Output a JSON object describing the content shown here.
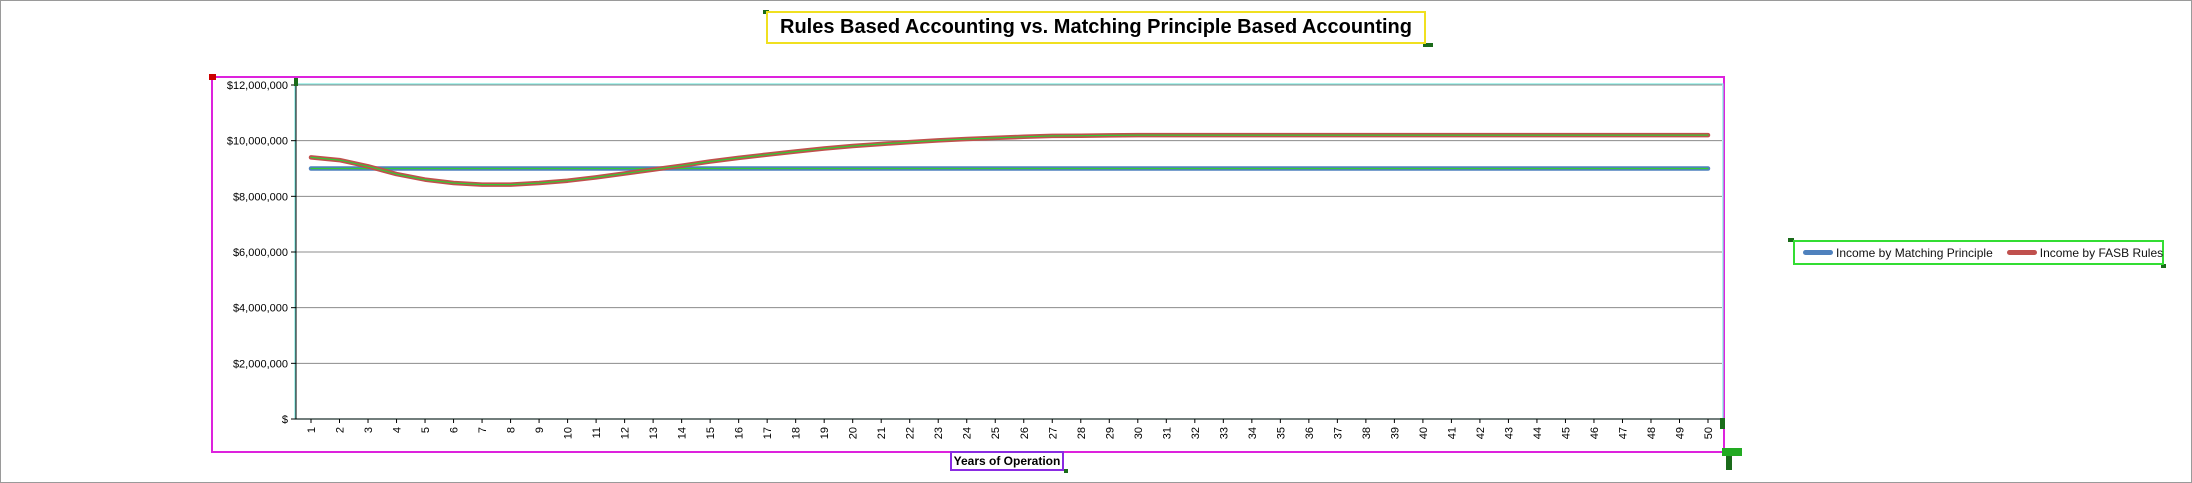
{
  "chart_data": {
    "type": "line",
    "title": "Rules Based Accounting vs. Matching Principle Based Accounting",
    "xlabel": "Years of Operation",
    "ylabel": "",
    "x": [
      1,
      2,
      3,
      4,
      5,
      6,
      7,
      8,
      9,
      10,
      11,
      12,
      13,
      14,
      15,
      16,
      17,
      18,
      19,
      20,
      21,
      22,
      23,
      24,
      25,
      26,
      27,
      28,
      29,
      30,
      31,
      32,
      33,
      34,
      35,
      36,
      37,
      38,
      39,
      40,
      41,
      42,
      43,
      44,
      45,
      46,
      47,
      48,
      49,
      50
    ],
    "ylim": [
      0,
      12000000
    ],
    "yticks": [
      0,
      2000000,
      4000000,
      6000000,
      8000000,
      10000000,
      12000000
    ],
    "ytick_labels": [
      "$",
      "$2,000,000",
      "$4,000,000",
      "$6,000,000",
      "$8,000,000",
      "$10,000,000",
      "$12,000,000"
    ],
    "grid": true,
    "legend_position": "right",
    "series": [
      {
        "name": "Income by Matching Principle",
        "color": "#4f81bd",
        "values": [
          9000000,
          9000000,
          9000000,
          9000000,
          9000000,
          9000000,
          9000000,
          9000000,
          9000000,
          9000000,
          9000000,
          9000000,
          9000000,
          9000000,
          9000000,
          9000000,
          9000000,
          9000000,
          9000000,
          9000000,
          9000000,
          9000000,
          9000000,
          9000000,
          9000000,
          9000000,
          9000000,
          9000000,
          9000000,
          9000000,
          9000000,
          9000000,
          9000000,
          9000000,
          9000000,
          9000000,
          9000000,
          9000000,
          9000000,
          9000000,
          9000000,
          9000000,
          9000000,
          9000000,
          9000000,
          9000000,
          9000000,
          9000000,
          9000000,
          9000000
        ]
      },
      {
        "name": "Income by FASB Rules",
        "color": "#c0504d",
        "values": [
          9400000,
          9300000,
          9080000,
          8800000,
          8600000,
          8480000,
          8420000,
          8420000,
          8480000,
          8560000,
          8680000,
          8820000,
          8960000,
          9100000,
          9250000,
          9380000,
          9500000,
          9610000,
          9720000,
          9810000,
          9880000,
          9950000,
          10010000,
          10060000,
          10100000,
          10140000,
          10170000,
          10180000,
          10190000,
          10200000,
          10200000,
          10200000,
          10200000,
          10200000,
          10200000,
          10200000,
          10200000,
          10200000,
          10200000,
          10200000,
          10200000,
          10200000,
          10200000,
          10200000,
          10200000,
          10200000,
          10200000,
          10200000,
          10200000,
          10200000
        ]
      }
    ],
    "overlay_colors": {
      "green": "#33cc33",
      "cyan": "#7fe8e0",
      "magenta": "#dd22dd"
    }
  }
}
